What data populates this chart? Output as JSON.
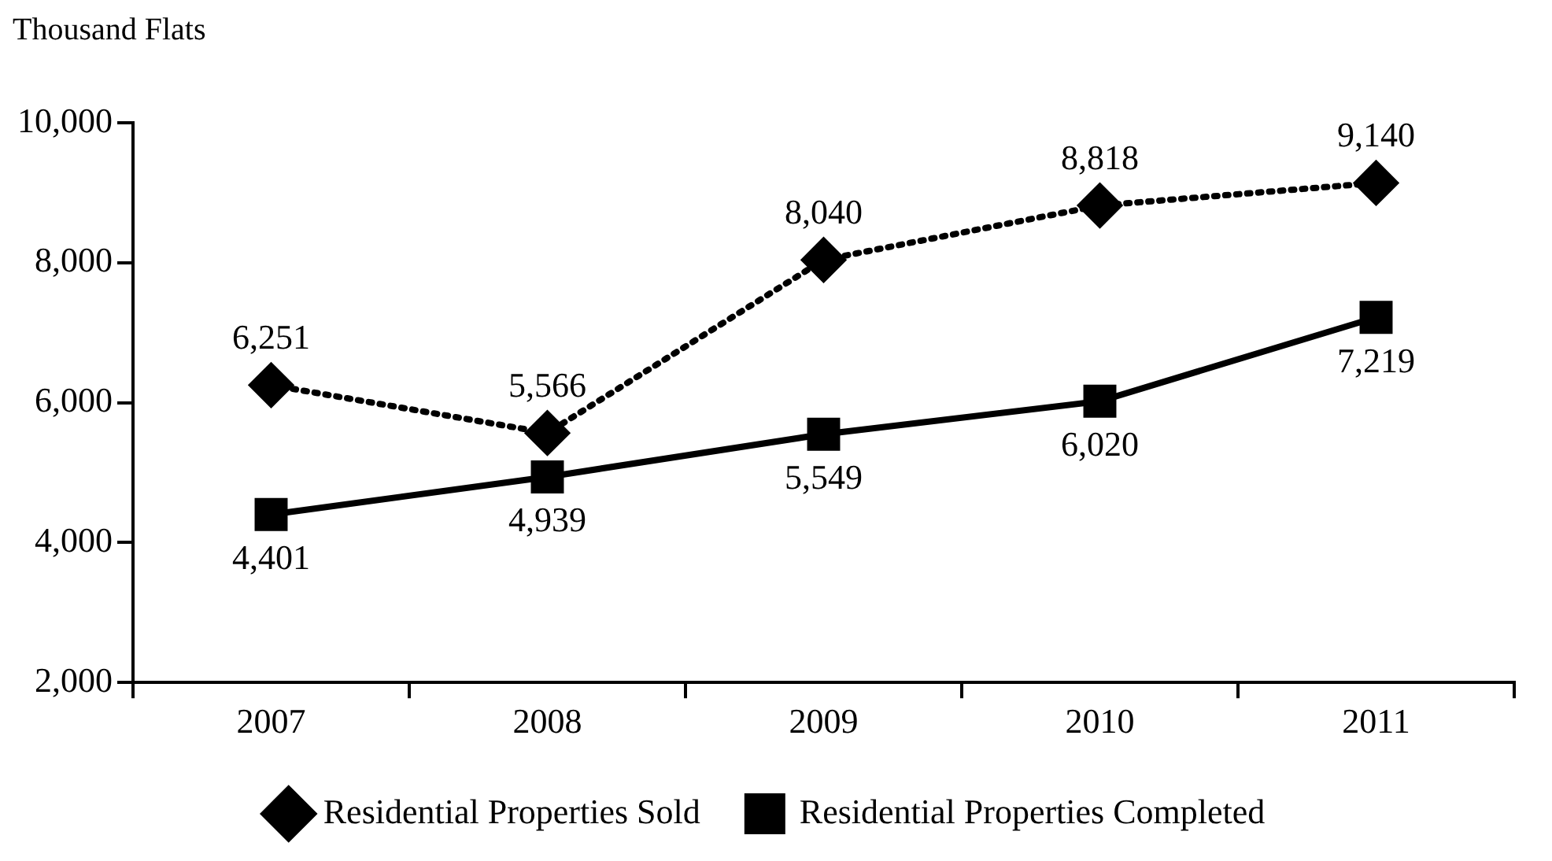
{
  "chart_data": {
    "type": "line",
    "ylabel": "Thousand Flats",
    "categories": [
      "2007",
      "2008",
      "2009",
      "2010",
      "2011"
    ],
    "series": [
      {
        "name": "Residential Properties Sold",
        "color": "#000000",
        "marker": "diamond",
        "line_style": "dotted",
        "values": [
          6251,
          5566,
          8040,
          8818,
          9140
        ],
        "value_labels": [
          "6,251",
          "5,566",
          "8,040",
          "8,818",
          "9,140"
        ]
      },
      {
        "name": "Residential Properties Completed",
        "color": "#000000",
        "marker": "square",
        "line_style": "solid",
        "values": [
          4401,
          4939,
          5549,
          6020,
          7219
        ],
        "value_labels": [
          "4,401",
          "4,939",
          "5,549",
          "6,020",
          "7,219"
        ]
      }
    ],
    "ylim": [
      2000,
      10000
    ],
    "yticks": [
      {
        "value": 2000,
        "label": "2,000"
      },
      {
        "value": 4000,
        "label": "4,000"
      },
      {
        "value": 6000,
        "label": "6,000"
      },
      {
        "value": 8000,
        "label": "8,000"
      },
      {
        "value": 10000,
        "label": "10,000"
      }
    ],
    "grid": false,
    "legend": "bottom"
  }
}
